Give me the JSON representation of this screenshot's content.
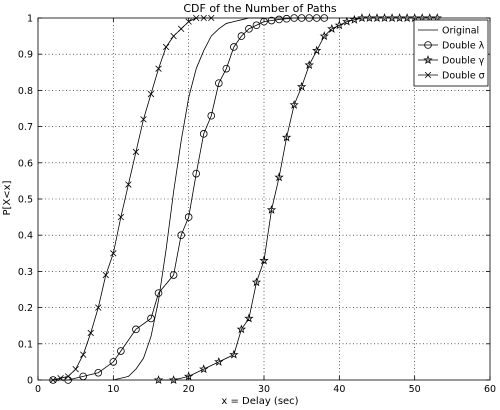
{
  "chart_data": {
    "type": "line",
    "title": "CDF of the Number of Paths",
    "xlabel": "x = Delay (sec)",
    "ylabel": "P[X<x]",
    "xlim": [
      0,
      60
    ],
    "ylim": [
      0,
      1
    ],
    "xticks": [
      "0",
      "10",
      "20",
      "30",
      "40",
      "50",
      "60"
    ],
    "yticks": [
      "0",
      "0.1",
      "0.2",
      "0.3",
      "0.4",
      "0.5",
      "0.6",
      "0.7",
      "0.8",
      "0.9",
      "1"
    ],
    "grid": true,
    "legend_position": "top-right",
    "series": [
      {
        "name": "Original",
        "marker": "none",
        "x": [
          10,
          12,
          13,
          14,
          15,
          16,
          17,
          18,
          19,
          20,
          21,
          22,
          23,
          24,
          25,
          26,
          27,
          28,
          30
        ],
        "y": [
          0,
          0.01,
          0.03,
          0.06,
          0.12,
          0.22,
          0.36,
          0.52,
          0.66,
          0.78,
          0.86,
          0.91,
          0.95,
          0.97,
          0.985,
          0.99,
          0.995,
          1,
          1
        ]
      },
      {
        "name": "Double λ",
        "marker": "circle",
        "x": [
          2,
          4,
          6,
          8,
          10,
          11,
          13,
          15,
          16,
          18,
          19,
          20,
          21,
          22,
          23,
          24,
          25,
          26,
          27,
          28,
          29,
          30,
          31,
          32,
          33,
          34,
          35,
          36,
          37,
          38
        ],
        "y": [
          0,
          0,
          0.01,
          0.02,
          0.05,
          0.08,
          0.14,
          0.17,
          0.24,
          0.29,
          0.4,
          0.45,
          0.57,
          0.68,
          0.73,
          0.82,
          0.86,
          0.92,
          0.95,
          0.97,
          0.98,
          0.99,
          0.993,
          0.996,
          0.998,
          1,
          1,
          1,
          1,
          1
        ]
      },
      {
        "name": "Double γ",
        "marker": "star",
        "x": [
          16,
          18,
          20,
          22,
          24,
          26,
          27,
          28,
          29,
          30,
          31,
          32,
          33,
          34,
          35,
          36,
          37,
          38,
          39,
          40,
          41,
          42,
          43,
          44,
          45,
          46,
          47,
          48,
          49,
          50,
          51,
          52,
          53
        ],
        "y": [
          0,
          0,
          0.01,
          0.03,
          0.05,
          0.07,
          0.14,
          0.17,
          0.27,
          0.33,
          0.47,
          0.56,
          0.67,
          0.76,
          0.81,
          0.87,
          0.91,
          0.95,
          0.97,
          0.98,
          0.99,
          0.995,
          1,
          1,
          1,
          1,
          1,
          1,
          1,
          1,
          1,
          1,
          1
        ]
      },
      {
        "name": "Double σ",
        "marker": "x",
        "x": [
          2,
          3,
          4,
          5,
          6,
          7,
          8,
          9,
          10,
          11,
          12,
          13,
          14,
          15,
          16,
          17,
          18,
          19,
          20,
          21,
          22,
          23
        ],
        "y": [
          0,
          0.005,
          0.01,
          0.03,
          0.07,
          0.13,
          0.2,
          0.29,
          0.35,
          0.45,
          0.54,
          0.63,
          0.72,
          0.79,
          0.86,
          0.92,
          0.95,
          0.97,
          0.99,
          1,
          1,
          1
        ]
      }
    ]
  }
}
